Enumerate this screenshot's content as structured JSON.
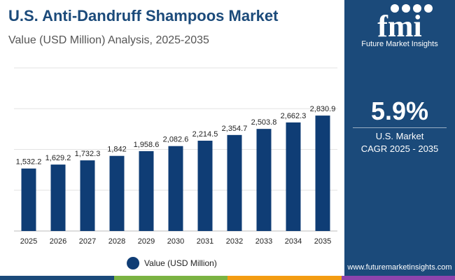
{
  "header": {
    "title": "U.S. Anti-Dandruff Shampoos Market",
    "subtitle": "Value (USD Million) Analysis, 2025-2035"
  },
  "chart_data": {
    "type": "bar",
    "title": "U.S. Anti-Dandruff Shampoos Market",
    "subtitle": "Value (USD Million) Analysis, 2025-2035",
    "categories": [
      "2025",
      "2026",
      "2027",
      "2028",
      "2029",
      "2030",
      "2031",
      "2032",
      "2033",
      "2034",
      "2035"
    ],
    "series": [
      {
        "name": "Value (USD Million)",
        "values": [
          1532.2,
          1629.2,
          1732.3,
          1842,
          1958.6,
          2082.6,
          2214.5,
          2354.7,
          2503.8,
          2662.3,
          2830.9
        ],
        "labels": [
          "1,532.2",
          "1,629.2",
          "1,732.3",
          "1,842",
          "1,958.6",
          "2,082.6",
          "2,214.5",
          "2,354.7",
          "2,503.8",
          "2,662.3",
          "2,830.9"
        ],
        "color": "#0f3d75"
      }
    ],
    "ylim": [
      0,
      4000
    ],
    "y_ticks_labeled": false,
    "grid": true,
    "legend_position": "bottom-center"
  },
  "side_panel": {
    "logo_text": "fmi",
    "logo_caption": "Future Market Insights",
    "cagr_value": "5.9%",
    "cagr_label_line1": "U.S. Market",
    "cagr_label_line2": "CAGR 2025 - 2035",
    "website": "www.futuremarketinsights.com"
  },
  "colors": {
    "brand": "#1b4a7a",
    "bar": "#0f3d75",
    "stripe": [
      "#1b4a7a",
      "#7bb342",
      "#f39c12",
      "#8e44ad"
    ]
  }
}
